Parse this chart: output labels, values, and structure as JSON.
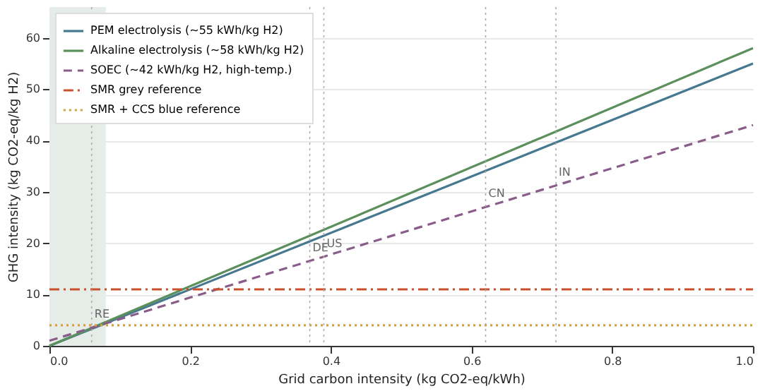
{
  "chart_data": {
    "type": "line",
    "xlabel": "Grid carbon intensity (kg CO2-eq/kWh)",
    "ylabel": "GHG intensity (kg CO2-eq/kg H2)",
    "xlim": [
      0,
      1
    ],
    "xticks": [
      {
        "value": 0,
        "label": "0.0"
      },
      0.2,
      0.4,
      0.6,
      0.8,
      {
        "value": 1,
        "label": "1.0"
      }
    ],
    "ylim": [
      0,
      66
    ],
    "yticks": [
      0,
      10,
      20,
      30,
      40,
      50,
      60
    ],
    "grid": "y",
    "legend": "top left",
    "x": [
      0,
      1
    ],
    "series": [
      {
        "name": "PEM electrolysis (~55 kWh/kg H2)",
        "color": "#46788f",
        "values": [
          0,
          55
        ],
        "line_style": "solid"
      },
      {
        "name": "Alkaline electrolysis (~58 kWh/kg H2)",
        "color": "#5b8f5b",
        "values": [
          0,
          58
        ],
        "line_style": "solid"
      },
      {
        "name": "SOEC (~42 kWh/kg H2, high-temp.)",
        "color": "#8a5c8a",
        "values": [
          1,
          43
        ],
        "line_style": "dashed"
      },
      {
        "name": "SMR grey reference",
        "color": "#c8502a",
        "values": [
          11,
          11
        ],
        "line_style": "dashdot"
      },
      {
        "name": "SMR + CCS blue reference",
        "color": "#d4a33f",
        "values": [
          4,
          4
        ],
        "line_style": "dotted"
      }
    ],
    "ref_lines": [
      {
        "axis": "x",
        "value": 0.06,
        "color": "#aaaaaa",
        "line_style": "dotted",
        "label": "RE"
      },
      {
        "axis": "x",
        "value": 0.37,
        "color": "#aaaaaa",
        "line_style": "dotted",
        "label": "DE"
      },
      {
        "axis": "x",
        "value": 0.39,
        "color": "#aaaaaa",
        "line_style": "dotted",
        "label": "US"
      },
      {
        "axis": "x",
        "value": 0.62,
        "color": "#aaaaaa",
        "line_style": "dotted",
        "label": "CN"
      },
      {
        "axis": "x",
        "value": 0.72,
        "color": "#aaaaaa",
        "line_style": "dotted",
        "label": "IN"
      }
    ],
    "bands": [
      {
        "axis": "x",
        "from": 0,
        "to": 0.08,
        "color": "#e6ece8"
      }
    ]
  }
}
